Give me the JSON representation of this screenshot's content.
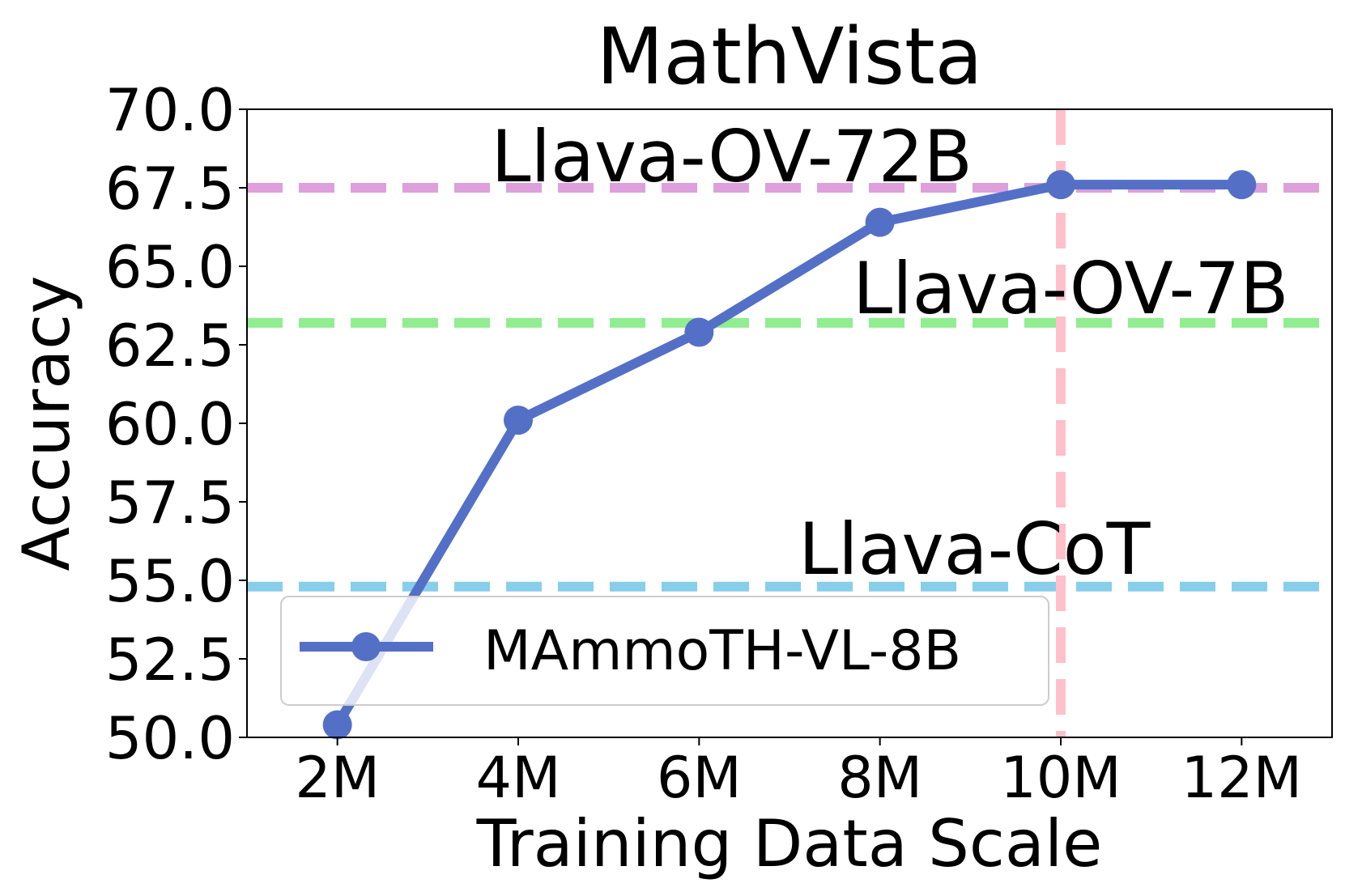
{
  "chart_data": {
    "type": "line",
    "title": "MathVista",
    "xlabel": "Training Data Scale",
    "ylabel": "Accuracy",
    "x": [
      2,
      4,
      6,
      8,
      10,
      12
    ],
    "x_ticks": [
      {
        "value": 2,
        "label": "2M"
      },
      {
        "value": 4,
        "label": "4M"
      },
      {
        "value": 6,
        "label": "6M"
      },
      {
        "value": 8,
        "label": "8M"
      },
      {
        "value": 10,
        "label": "10M"
      },
      {
        "value": 12,
        "label": "12M"
      }
    ],
    "y_ticks": [
      {
        "value": 50.0,
        "label": "50.0"
      },
      {
        "value": 52.5,
        "label": "52.5"
      },
      {
        "value": 55.0,
        "label": "55.0"
      },
      {
        "value": 57.5,
        "label": "57.5"
      },
      {
        "value": 60.0,
        "label": "60.0"
      },
      {
        "value": 62.5,
        "label": "62.5"
      },
      {
        "value": 65.0,
        "label": "65.0"
      },
      {
        "value": 67.5,
        "label": "67.5"
      },
      {
        "value": 70.0,
        "label": "70.0"
      }
    ],
    "xlim": [
      1,
      13
    ],
    "ylim": [
      50.0,
      70.0
    ],
    "grid": false,
    "series": [
      {
        "name": "MAmmoTH-VL-8B",
        "color": "#5470c6",
        "x": [
          2,
          4,
          6,
          8,
          10,
          12
        ],
        "values": [
          50.4,
          60.1,
          62.9,
          66.4,
          67.6,
          67.6
        ]
      }
    ],
    "reference_lines": [
      {
        "label": "Llava-OV-72B",
        "orientation": "horizontal",
        "value": 67.5,
        "color": "#dda0dd",
        "label_anchor_x": 3.7,
        "label_anchor_y": 67.7
      },
      {
        "label": "Llava-OV-7B",
        "orientation": "horizontal",
        "value": 63.2,
        "color": "#90ee90",
        "label_anchor_x": 7.7,
        "label_anchor_y": 63.5
      },
      {
        "label": "Llava-CoT",
        "orientation": "horizontal",
        "value": 54.8,
        "color": "#87ceeb",
        "label_anchor_x": 7.1,
        "label_anchor_y": 55.2
      },
      {
        "label": "",
        "orientation": "vertical",
        "value": 10,
        "color": "#ffc0cb"
      }
    ],
    "legend": {
      "placement": "lower-left",
      "entries": [
        "MAmmoTH-VL-8B"
      ]
    }
  }
}
